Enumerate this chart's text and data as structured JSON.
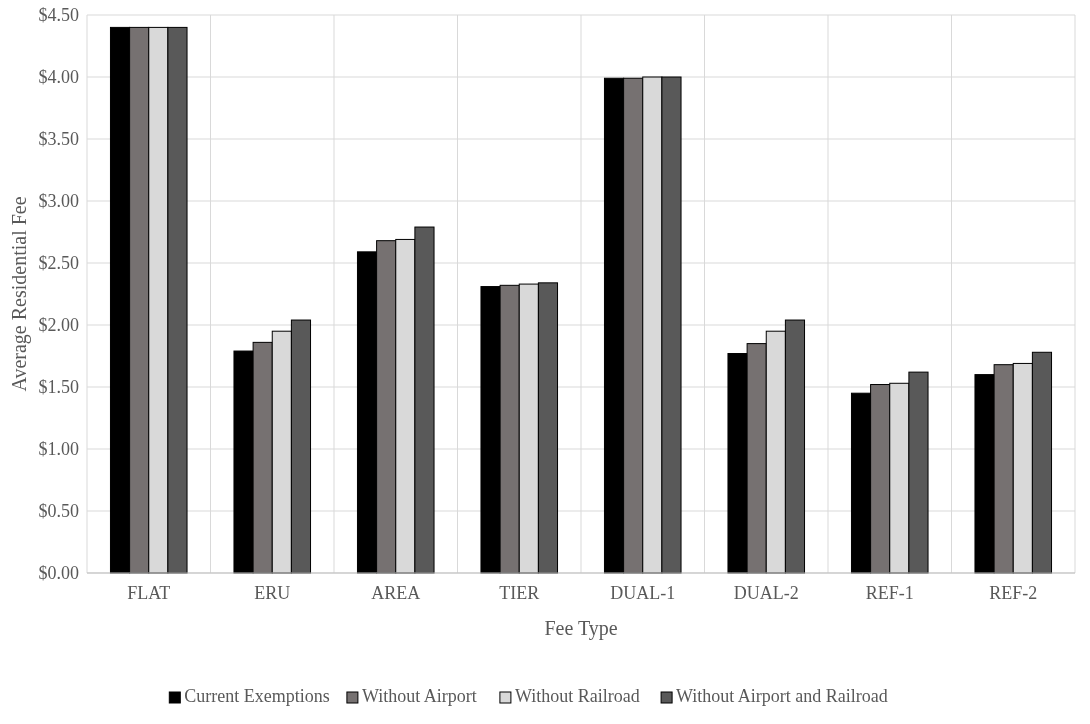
{
  "chart_data": {
    "type": "bar",
    "xlabel": "Fee Type",
    "ylabel": "Average Residential Fee",
    "categories": [
      "FLAT",
      "ERU",
      "AREA",
      "TIER",
      "DUAL-1",
      "DUAL-2",
      "REF-1",
      "REF-2"
    ],
    "series": [
      {
        "name": "Current Exemptions",
        "color": "#000000",
        "values": [
          4.4,
          1.79,
          2.59,
          2.31,
          3.99,
          1.77,
          1.45,
          1.6
        ]
      },
      {
        "name": "Without Airport",
        "color": "#767171",
        "values": [
          4.4,
          1.86,
          2.68,
          2.32,
          3.99,
          1.85,
          1.52,
          1.68
        ]
      },
      {
        "name": "Without Railroad",
        "color": "#d9d9d9",
        "values": [
          4.4,
          1.95,
          2.69,
          2.33,
          4.0,
          1.95,
          1.53,
          1.69
        ]
      },
      {
        "name": "Without Airport and Railroad",
        "color": "#595959",
        "values": [
          4.4,
          2.04,
          2.79,
          2.34,
          4.0,
          2.04,
          1.62,
          1.78
        ]
      }
    ],
    "ylim": [
      0,
      4.5
    ],
    "yticks": [
      {
        "value": 0,
        "label": "$0.00"
      },
      {
        "value": 0.5,
        "label": "$0.50"
      },
      {
        "value": 1,
        "label": "$1.00"
      },
      {
        "value": 1.5,
        "label": "$1.50"
      },
      {
        "value": 2,
        "label": "$2.00"
      },
      {
        "value": 2.5,
        "label": "$2.50"
      },
      {
        "value": 3,
        "label": "$3.00"
      },
      {
        "value": 3.5,
        "label": "$3.50"
      },
      {
        "value": 4,
        "label": "$4.00"
      },
      {
        "value": 4.5,
        "label": "$4.50"
      }
    ],
    "grid": true,
    "legend": "bottom"
  }
}
